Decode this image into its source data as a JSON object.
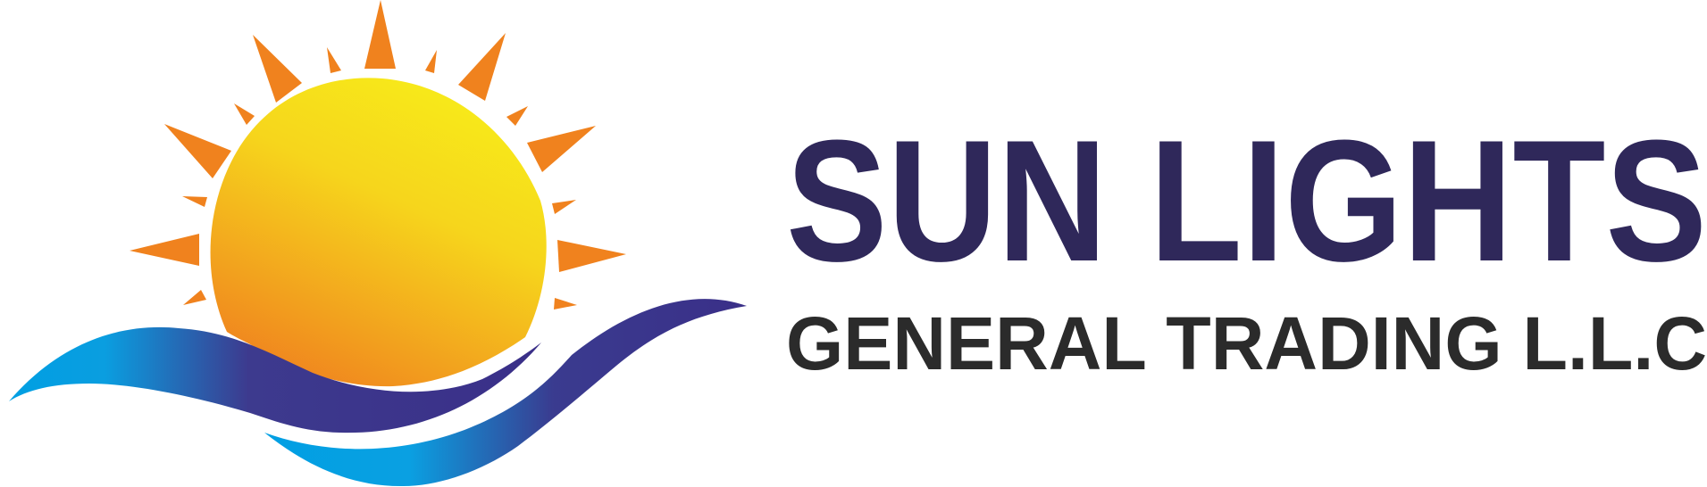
{
  "brand": {
    "name": "SUN LIGHTS",
    "tagline": "GENERAL TRADING L.L.C"
  },
  "colors": {
    "title": "#2f285a",
    "tagline": "#2b2b2b",
    "sun_light": "#f7e81a",
    "sun_dark": "#f0851f",
    "rays": "#f0821e",
    "wave_blue": "#009fe3",
    "wave_purple": "#3a2f88"
  },
  "icons": [
    "sun-icon",
    "wave-icon"
  ]
}
